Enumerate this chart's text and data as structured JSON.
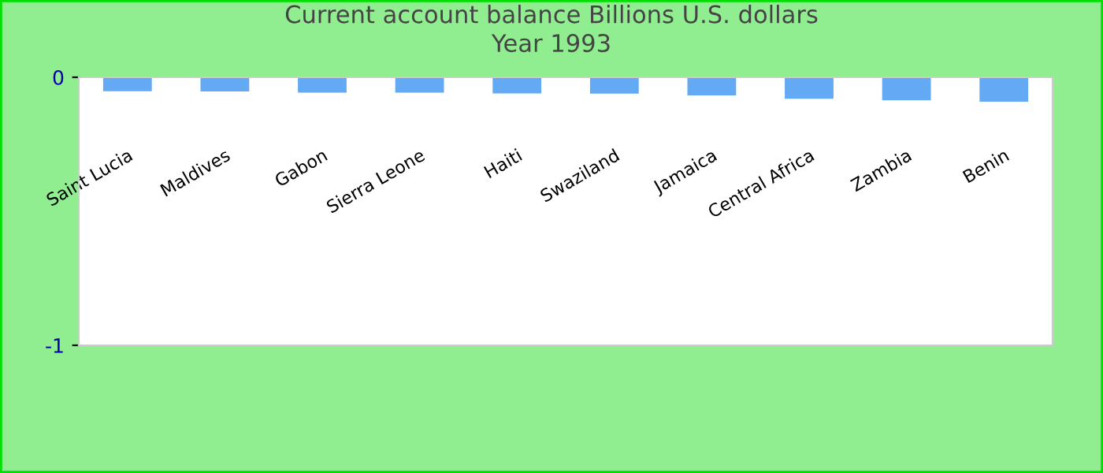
{
  "chart_data": {
    "type": "bar",
    "title": "Current account balance Billions U.S. dollars\nYear 1993",
    "categories": [
      "Saint Lucia",
      "Maldives",
      "Gabon",
      "Sierra Leone",
      "Haiti",
      "Swaziland",
      "Jamaica",
      "Central Africa",
      "Zambia",
      "Benin"
    ],
    "values": [
      -0.052,
      -0.053,
      -0.057,
      -0.057,
      -0.06,
      -0.061,
      -0.068,
      -0.08,
      -0.086,
      -0.091
    ],
    "color": "#63a9f4",
    "ylim": [
      -1,
      0
    ],
    "yticks": [
      -1,
      0
    ],
    "grid": false,
    "legend": false
  }
}
